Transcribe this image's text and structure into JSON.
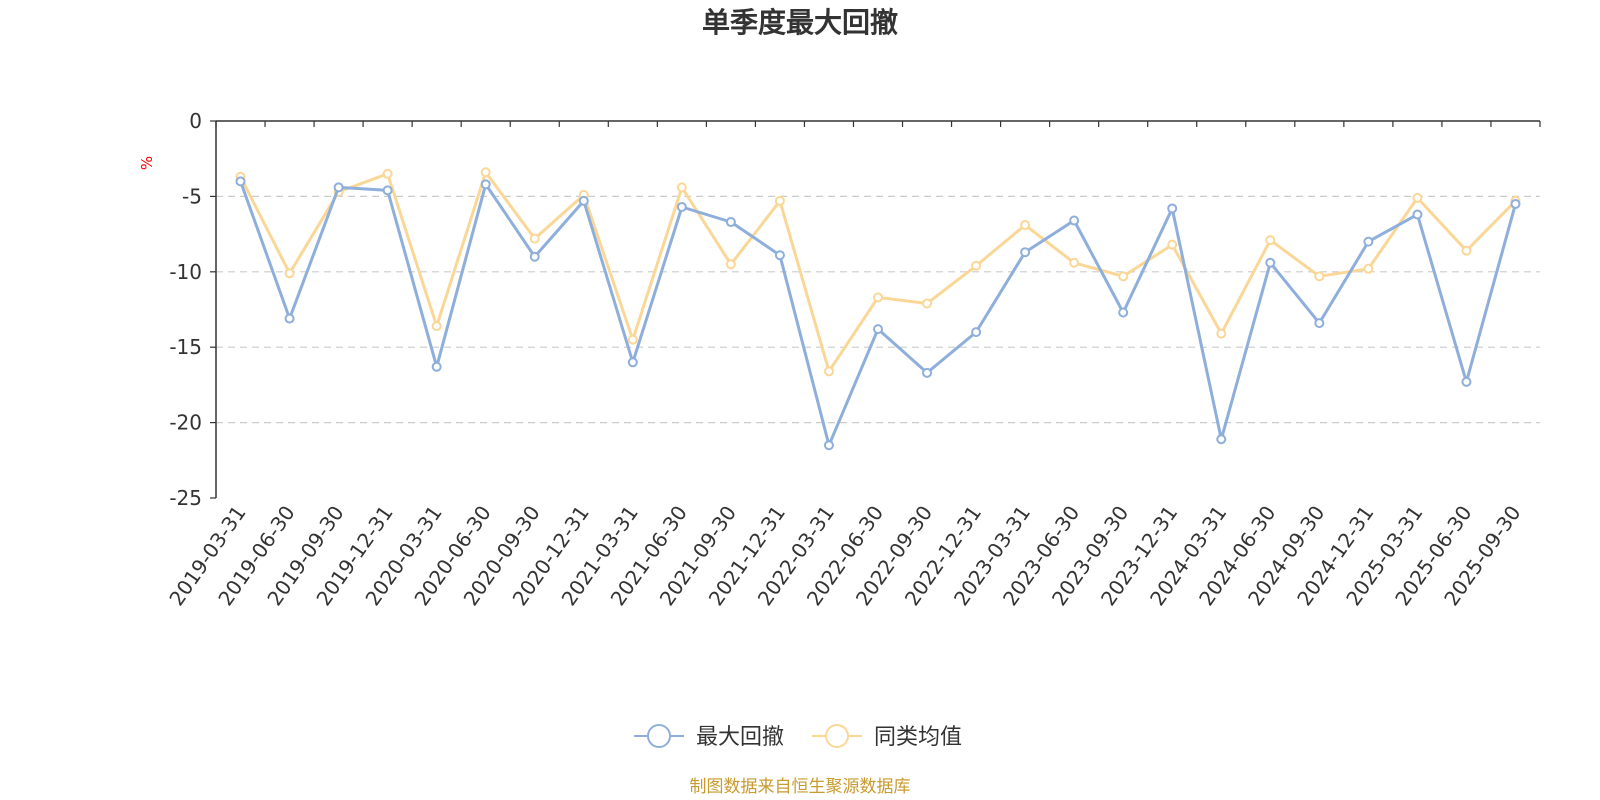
{
  "chart_data": {
    "type": "line",
    "title": "单季度最大回撤",
    "ylabel": "%",
    "ylim": [
      -25,
      0
    ],
    "yticks": [
      0,
      -5,
      -10,
      -15,
      -20,
      -25
    ],
    "grid": "horizontal-dashed",
    "legend_position": "bottom-center",
    "categories": [
      "2019-03-31",
      "2019-06-30",
      "2019-09-30",
      "2019-12-31",
      "2020-03-31",
      "2020-06-30",
      "2020-09-30",
      "2020-12-31",
      "2021-03-31",
      "2021-06-30",
      "2021-09-30",
      "2021-12-31",
      "2022-03-31",
      "2022-06-30",
      "2022-09-30",
      "2022-12-31",
      "2023-03-31",
      "2023-06-30",
      "2023-09-30",
      "2023-12-31",
      "2024-03-31",
      "2024-06-30",
      "2024-09-30",
      "2024-12-31",
      "2025-03-31",
      "2025-06-30",
      "2025-09-30"
    ],
    "series": [
      {
        "name": "最大回撤",
        "color": "#8eaedb",
        "values": [
          -4.0,
          -13.1,
          -4.4,
          -4.6,
          -16.3,
          -4.2,
          -9.0,
          -5.3,
          -16.0,
          -5.7,
          -6.7,
          -8.9,
          -21.5,
          -13.8,
          -16.7,
          -14.0,
          -8.7,
          -6.6,
          -12.7,
          -5.8,
          -21.1,
          -9.4,
          -13.4,
          -8.0,
          -6.2,
          -17.3,
          -5.5
        ]
      },
      {
        "name": "同类均值",
        "color": "#fad797",
        "values": [
          -3.7,
          -10.1,
          -4.7,
          -3.5,
          -13.6,
          -3.4,
          -7.8,
          -4.9,
          -14.5,
          -4.4,
          -9.5,
          -5.3,
          -16.6,
          -11.7,
          -12.1,
          -9.6,
          -6.9,
          -9.4,
          -10.3,
          -8.2,
          -14.1,
          -7.9,
          -10.3,
          -9.8,
          -5.1,
          -8.6,
          -5.3
        ]
      }
    ]
  },
  "source_text": "制图数据来自恒生聚源数据库",
  "colors": {
    "axis": "#333333",
    "grid": "#cccccc",
    "unit_label": "#ff0000",
    "source_text": "#c99a2e"
  }
}
